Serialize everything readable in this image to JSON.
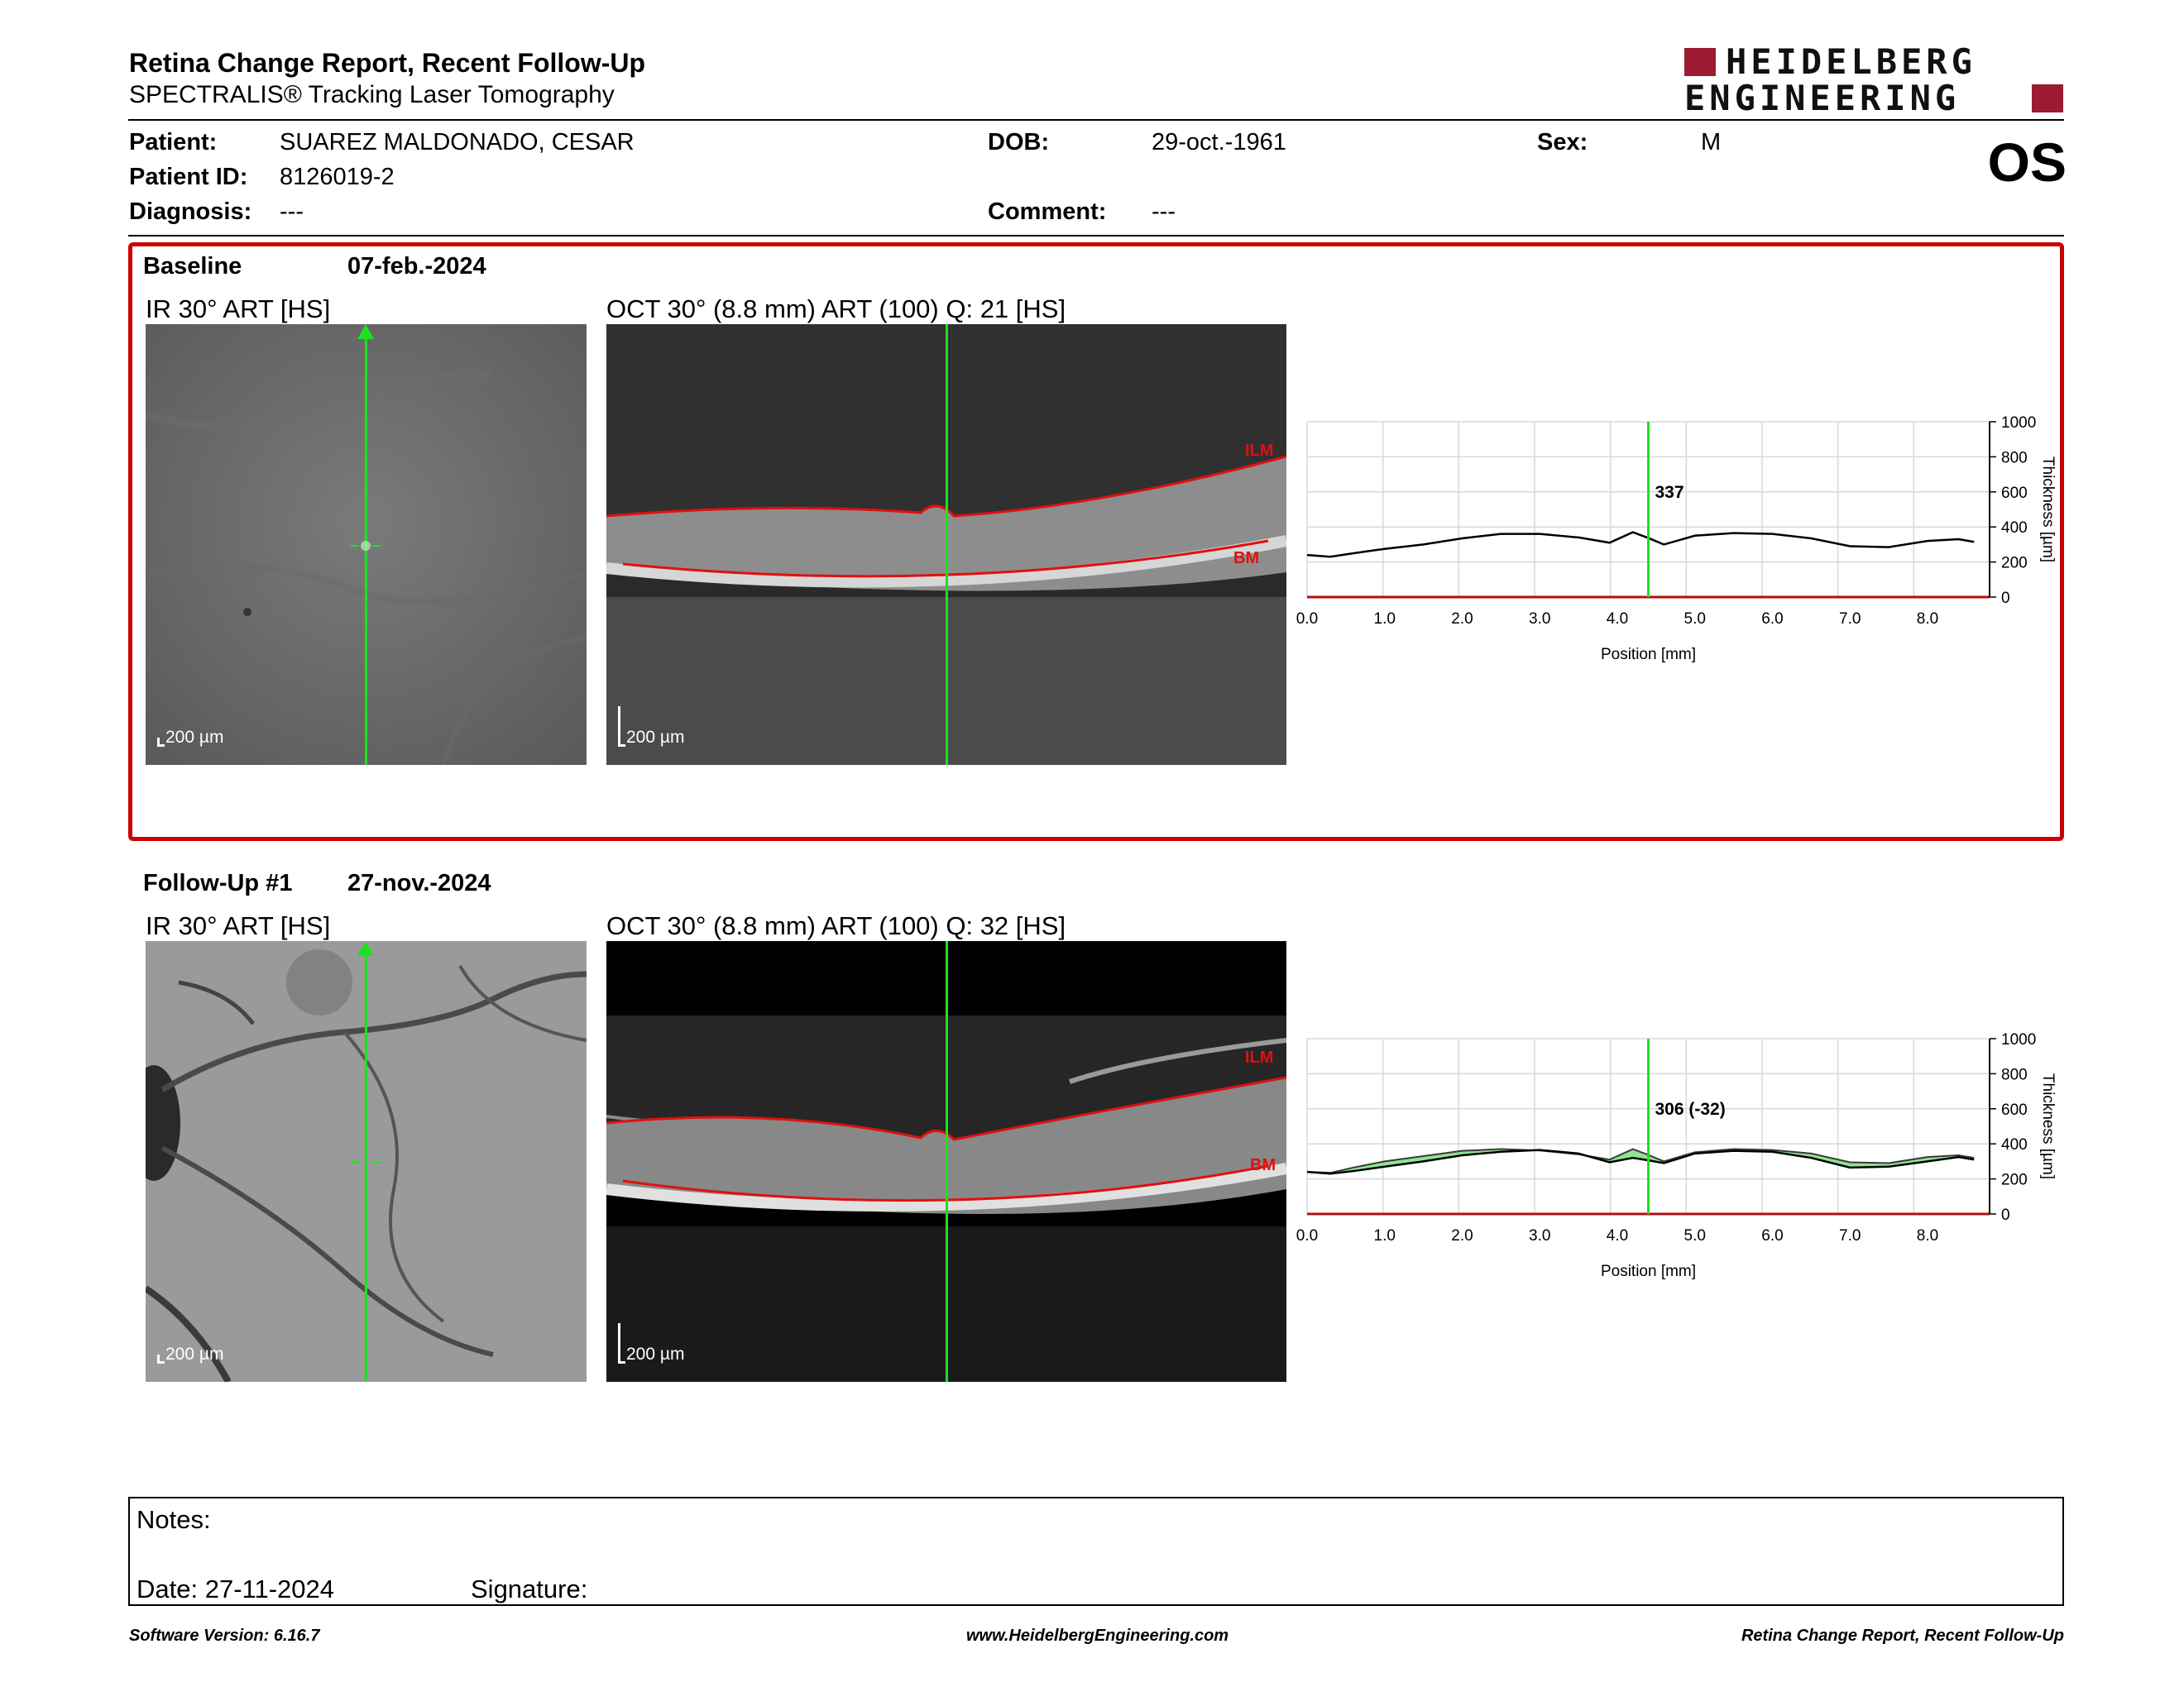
{
  "header": {
    "title": "Retina Change Report, Recent Follow-Up",
    "subtitle": "SPECTRALIS® Tracking Laser Tomography",
    "logo_line1": "HEIDELBERG",
    "logo_line2": "ENGINEERING",
    "eye": "OS"
  },
  "patient": {
    "name_label": "Patient:",
    "name": "SUAREZ MALDONADO, CESAR",
    "id_label": "Patient ID:",
    "id": "8126019-2",
    "diagnosis_label": "Diagnosis:",
    "diagnosis": "---",
    "dob_label": "DOB:",
    "dob": "29-oct.-1961",
    "comment_label": "Comment:",
    "comment": "---",
    "sex_label": "Sex:",
    "sex": "M"
  },
  "baseline": {
    "label": "Baseline",
    "date": "07-feb.-2024",
    "ir_title": "IR 30° ART [HS]",
    "oct_title": "OCT 30° (8.8 mm) ART (100) Q: 21 [HS]",
    "scale_label": "200 µm",
    "ilm_label": "ILM",
    "bm_label": "BM",
    "cursor_value": "337"
  },
  "followup": {
    "label": "Follow-Up #1",
    "date": "27-nov.-2024",
    "ir_title": "IR 30° ART [HS]",
    "oct_title": "OCT 30° (8.8 mm) ART (100) Q: 32 [HS]",
    "scale_label": "200 µm",
    "ilm_label": "ILM",
    "bm_label": "BM",
    "cursor_value": "306 (-32)"
  },
  "colors": {
    "accent_red": "#cc0000",
    "cursor_green": "#1fe01f",
    "change_fill": "#7be07b",
    "logo_red": "#9b1b30"
  },
  "chart_data": [
    {
      "type": "line",
      "title": "",
      "xlabel": "Position [mm]",
      "ylabel": "Thickness [µm]",
      "xlim": [
        0.0,
        8.8
      ],
      "ylim": [
        0,
        1000
      ],
      "x_ticks": [
        "0.0",
        "1.0",
        "2.0",
        "3.0",
        "4.0",
        "5.0",
        "6.0",
        "7.0",
        "8.0"
      ],
      "y_ticks": [
        "0",
        "200",
        "400",
        "600",
        "800",
        "1000"
      ],
      "grid": true,
      "cursor_x": 4.4,
      "cursor_label": "337",
      "series": [
        {
          "x": [
            0.0,
            0.3,
            0.6,
            1.0,
            1.5,
            2.0,
            2.5,
            3.0,
            3.5,
            3.9,
            4.2,
            4.4,
            4.6,
            5.0,
            5.5,
            6.0,
            6.5,
            7.0,
            7.5,
            8.0,
            8.4,
            8.6
          ],
          "values": [
            240,
            230,
            250,
            275,
            300,
            335,
            360,
            360,
            340,
            310,
            370,
            337,
            300,
            350,
            365,
            360,
            335,
            290,
            285,
            320,
            330,
            315
          ]
        }
      ]
    },
    {
      "type": "area",
      "title": "",
      "xlabel": "Position [mm]",
      "ylabel": "Thickness [µm]",
      "xlim": [
        0.0,
        8.8
      ],
      "ylim": [
        0,
        1000
      ],
      "x_ticks": [
        "0.0",
        "1.0",
        "2.0",
        "3.0",
        "4.0",
        "5.0",
        "6.0",
        "7.0",
        "8.0"
      ],
      "y_ticks": [
        "0",
        "200",
        "400",
        "600",
        "800",
        "1000"
      ],
      "grid": true,
      "cursor_x": 4.4,
      "cursor_label": "306 (-32)",
      "series": [
        {
          "x": [
            0.0,
            0.3,
            0.6,
            1.0,
            1.5,
            2.0,
            2.5,
            3.0,
            3.5,
            3.9,
            4.2,
            4.4,
            4.6,
            5.0,
            5.5,
            6.0,
            6.5,
            7.0,
            7.5,
            8.0,
            8.4,
            8.6
          ],
          "values": [
            240,
            230,
            245,
            270,
            300,
            335,
            355,
            365,
            345,
            295,
            320,
            306,
            290,
            345,
            360,
            355,
            320,
            265,
            270,
            300,
            325,
            310
          ]
        },
        {
          "x": [
            0.0,
            0.3,
            0.6,
            1.0,
            1.5,
            2.0,
            2.5,
            3.0,
            3.5,
            3.9,
            4.2,
            4.4,
            4.6,
            5.0,
            5.5,
            6.0,
            6.5,
            7.0,
            7.5,
            8.0,
            8.4,
            8.6
          ],
          "values": [
            240,
            235,
            265,
            300,
            330,
            360,
            370,
            362,
            340,
            310,
            370,
            337,
            300,
            352,
            370,
            365,
            345,
            295,
            290,
            325,
            335,
            320
          ]
        }
      ]
    }
  ],
  "notes": {
    "notes_label": "Notes:",
    "date_label": "Date: 27-11-2024",
    "signature_label": "Signature:"
  },
  "footer": {
    "version": "Software Version: 6.16.7",
    "url": "www.HeidelbergEngineering.com",
    "report": "Retina Change Report, Recent Follow-Up"
  }
}
